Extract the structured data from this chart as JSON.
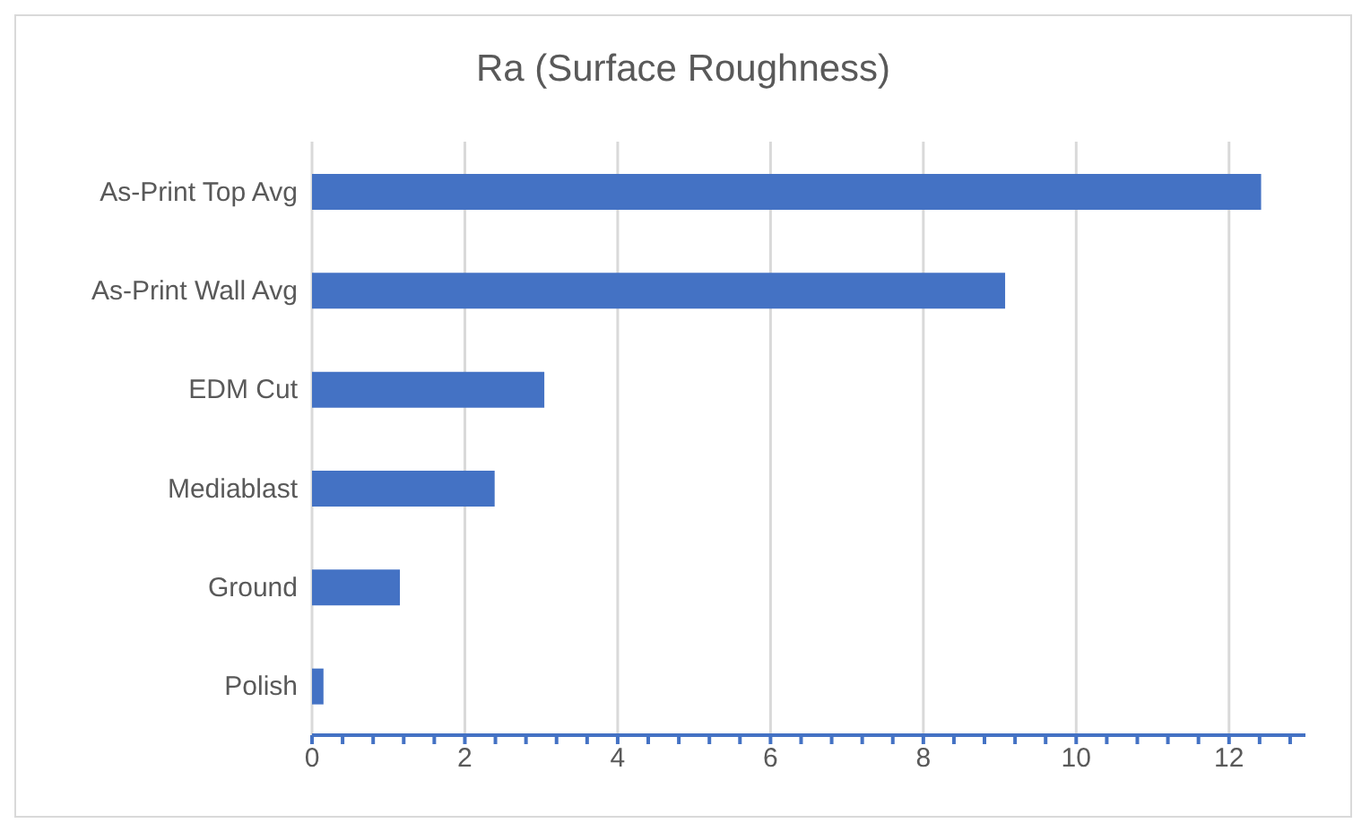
{
  "chart_data": {
    "type": "bar",
    "orientation": "horizontal",
    "title": "Ra (Surface Roughness)",
    "categories": [
      "As-Print Top Avg",
      "As-Print Wall Avg",
      "EDM Cut",
      "Mediablast",
      "Ground",
      "Polish"
    ],
    "values": [
      12.42,
      9.07,
      3.04,
      2.39,
      1.15,
      0.15
    ],
    "color": "#4472c4",
    "xlim": [
      0,
      13
    ],
    "xticks": [
      0,
      {
        "value": 0.4,
        "label": null
      },
      {
        "value": 0.8,
        "label": null
      },
      {
        "value": 1.2,
        "label": null
      },
      {
        "value": 1.6,
        "label": null
      },
      2,
      {
        "value": 2.4,
        "label": null
      },
      {
        "value": 2.8,
        "label": null
      },
      {
        "value": 3.2,
        "label": null
      },
      {
        "value": 3.6,
        "label": null
      },
      4,
      {
        "value": 4.4,
        "label": null
      },
      {
        "value": 4.8,
        "label": null
      },
      {
        "value": 5.2,
        "label": null
      },
      {
        "value": 5.6,
        "label": null
      },
      6,
      {
        "value": 6.4,
        "label": null
      },
      {
        "value": 6.8,
        "label": null
      },
      {
        "value": 7.2,
        "label": null
      },
      {
        "value": 7.6,
        "label": null
      },
      8,
      {
        "value": 8.4,
        "label": null
      },
      {
        "value": 8.8,
        "label": null
      },
      {
        "value": 9.2,
        "label": null
      },
      {
        "value": 9.6,
        "label": null
      },
      10,
      {
        "value": 10.4,
        "label": null
      },
      {
        "value": 10.8,
        "label": null
      },
      {
        "value": 11.2,
        "label": null
      },
      {
        "value": 11.6,
        "label": null
      },
      12,
      {
        "value": 12.4,
        "label": null
      },
      {
        "value": 12.8,
        "label": null
      }
    ],
    "grid": "x"
  }
}
